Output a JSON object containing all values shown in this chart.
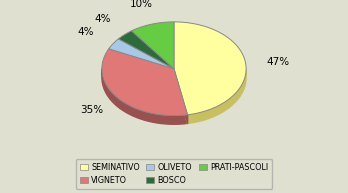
{
  "labels": [
    "SEMINATIVO",
    "VIGNETO",
    "OLIVETO",
    "BOSCO",
    "PRATI-PASCOLI"
  ],
  "values": [
    47,
    35,
    4,
    4,
    10
  ],
  "colors": [
    "#FFFFA0",
    "#E07878",
    "#A8C8E8",
    "#2D6B3C",
    "#66CC44"
  ],
  "shadow_colors": [
    "#C8C060",
    "#985050",
    "#7090A8",
    "#1A4020",
    "#409020"
  ],
  "background_color": "#E0E0D0",
  "legend_order": [
    "SEMINATIVO",
    "VIGNETO",
    "OLIVETO",
    "BOSCO",
    "PRATI-PASCOLI"
  ],
  "legend_colors": [
    "#FFFFA0",
    "#E07878",
    "#A8C8E8",
    "#2D6B3C",
    "#66CC44"
  ],
  "pct_labels": [
    "47%",
    "35%",
    "4%",
    "4%",
    "10%"
  ],
  "depth": 0.12
}
